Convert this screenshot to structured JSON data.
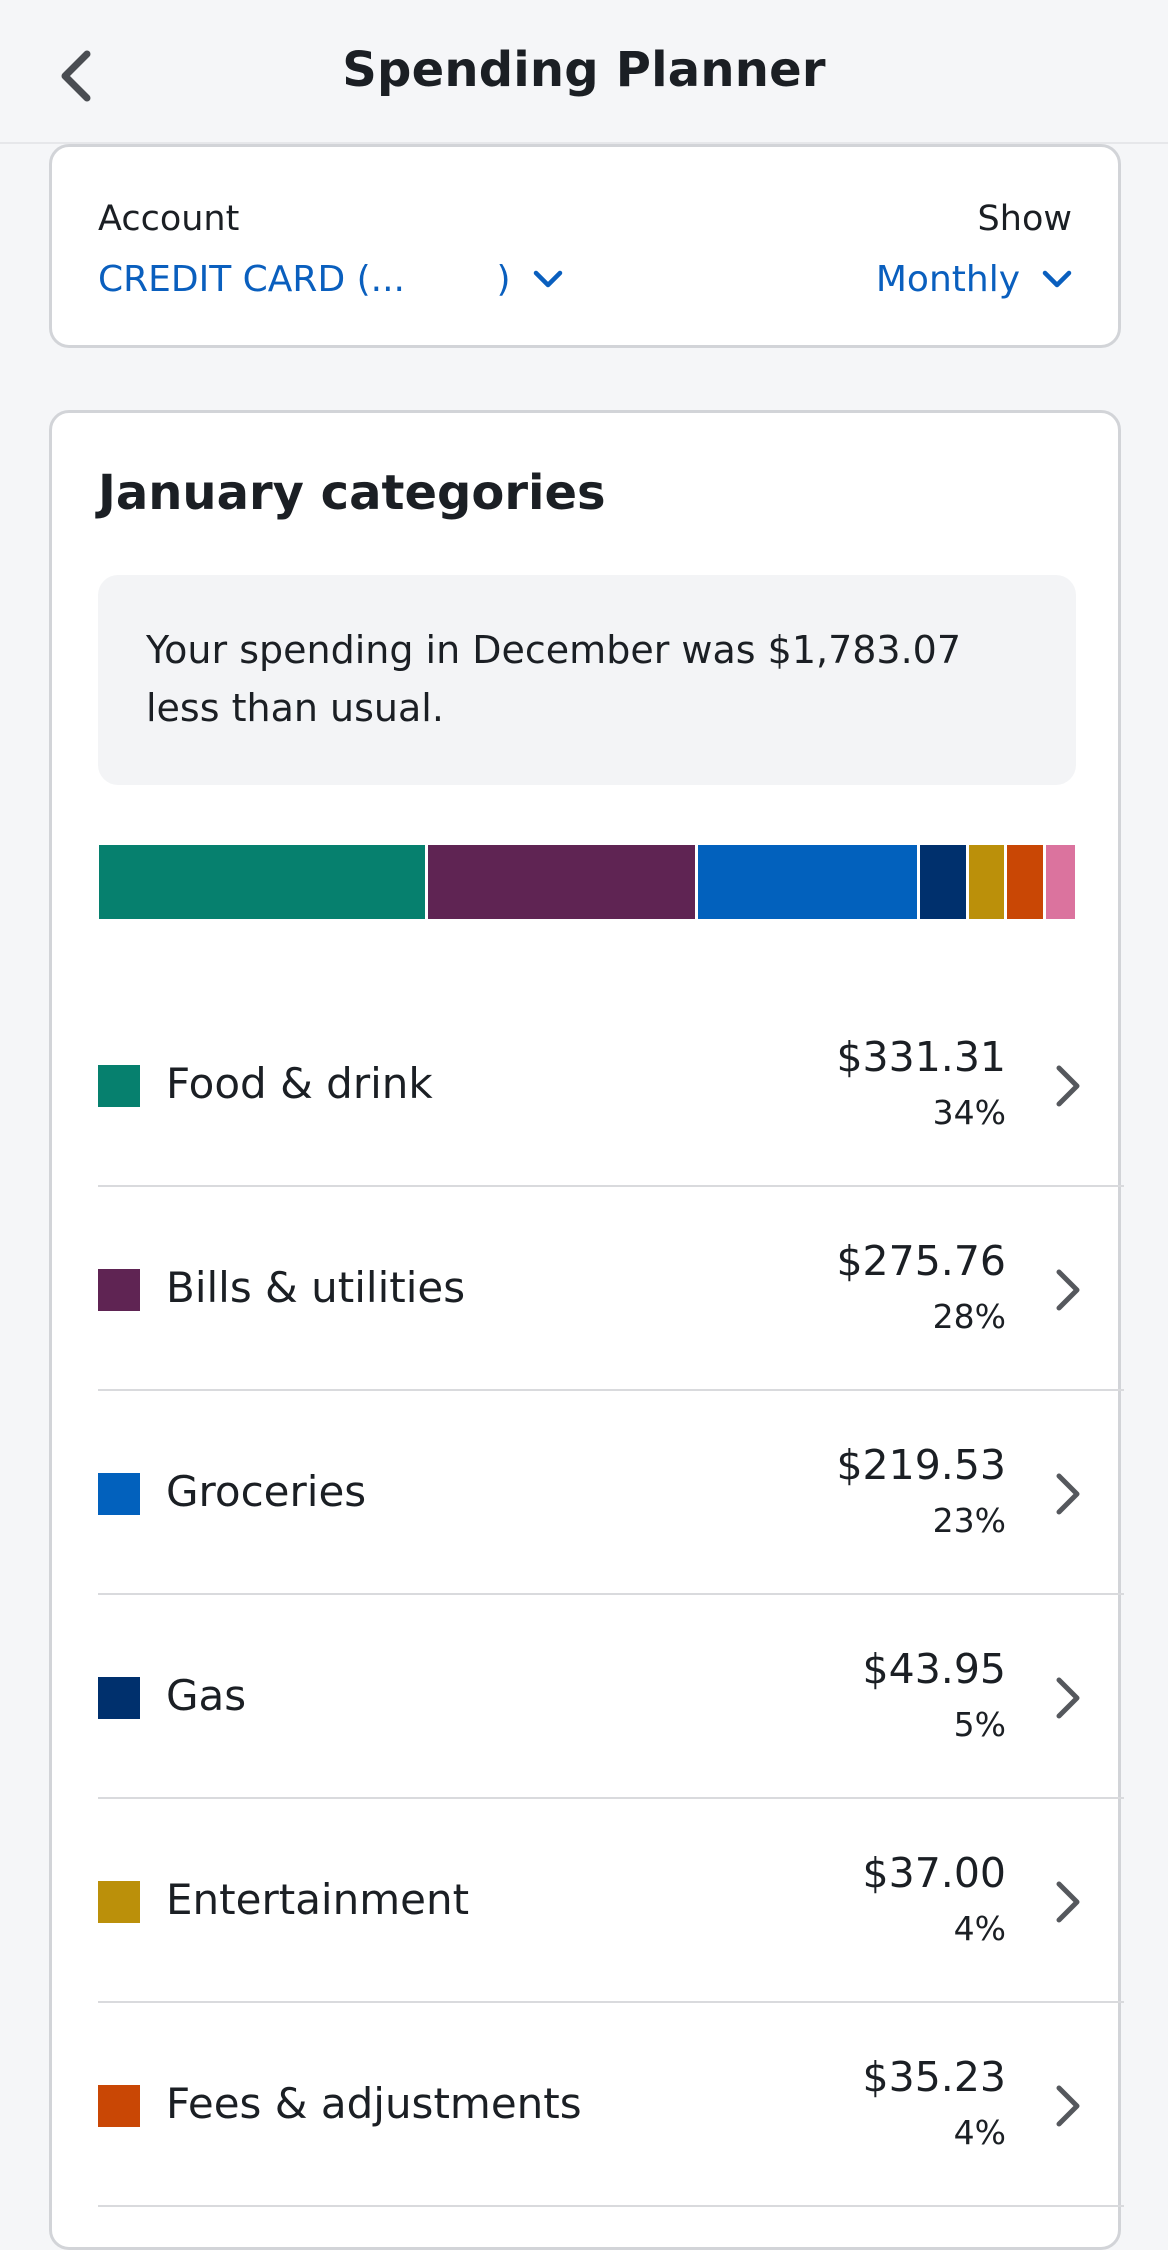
{
  "header": {
    "title": "Spending Planner",
    "back_icon": "chevron-left-icon"
  },
  "filters": {
    "account_label": "Account",
    "account_value": "CREDIT CARD (...        )",
    "show_label": "Show",
    "show_value": "Monthly"
  },
  "categories_card": {
    "title": "January categories",
    "insight": "Your spending in December was $1,783.07 less than usual."
  },
  "colors": {
    "accent": "#0a5fbe",
    "food": "#06806e",
    "bills": "#5f2453",
    "groceries": "#0261bd",
    "gas": "#00306d",
    "entertainment": "#bb900a",
    "fees": "#c94705",
    "other": "#db739e"
  },
  "categories": [
    {
      "name": "Food & drink",
      "amount": "$331.31",
      "percent": "34%",
      "share": 34,
      "color": "#06806e"
    },
    {
      "name": "Bills & utilities",
      "amount": "$275.76",
      "percent": "28%",
      "share": 28,
      "color": "#5f2453"
    },
    {
      "name": "Groceries",
      "amount": "$219.53",
      "percent": "23%",
      "share": 23,
      "color": "#0261bd"
    },
    {
      "name": "Gas",
      "amount": "$43.95",
      "percent": "5%",
      "share": 5,
      "color": "#00306d"
    },
    {
      "name": "Entertainment",
      "amount": "$37.00",
      "percent": "4%",
      "share": 4,
      "color": "#bb900a"
    },
    {
      "name": "Fees & adjustments",
      "amount": "$35.23",
      "percent": "4%",
      "share": 4,
      "color": "#c94705"
    }
  ],
  "extra_segment": {
    "share": 3,
    "color": "#db739e"
  }
}
